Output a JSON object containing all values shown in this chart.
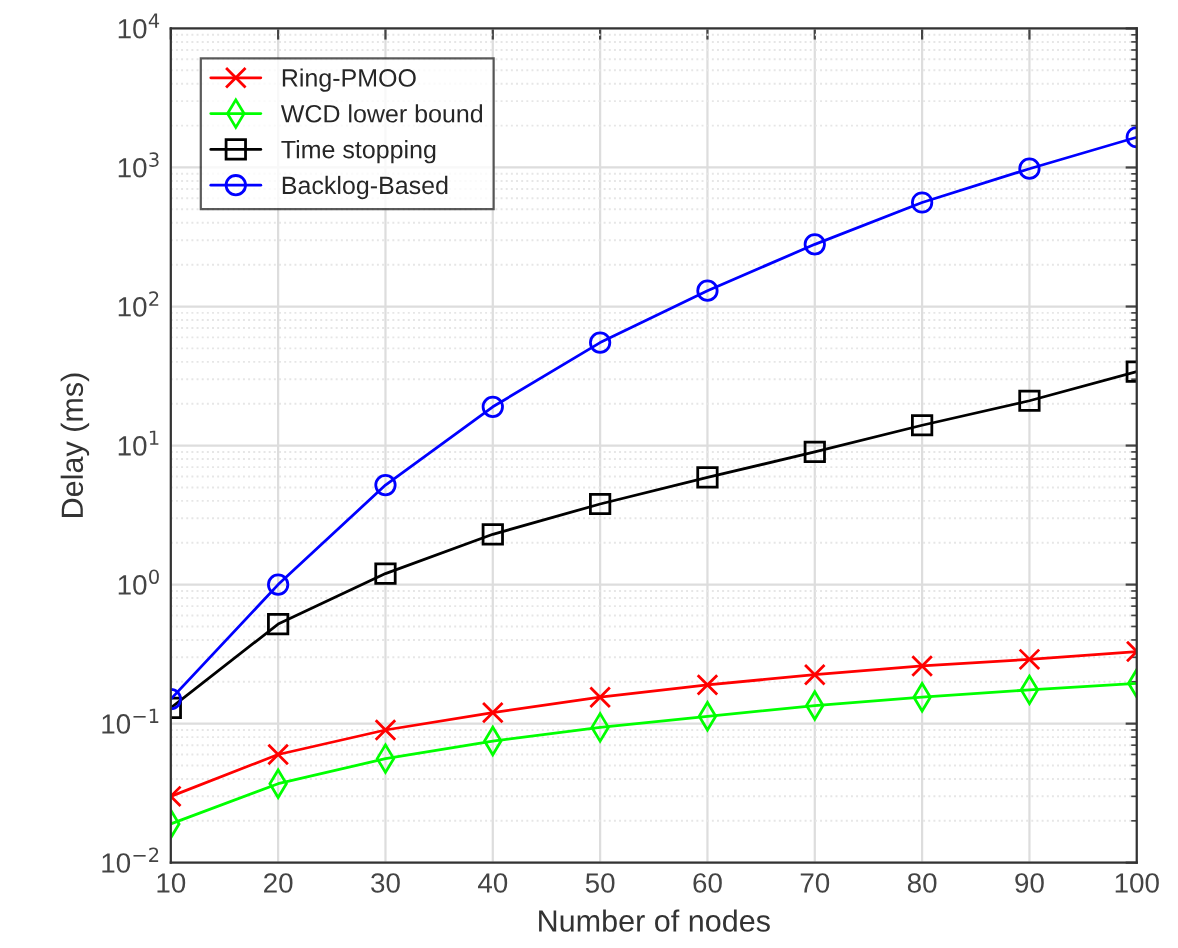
{
  "chart_data": {
    "type": "line",
    "xlabel": "Number of nodes",
    "ylabel": "Delay (ms)",
    "x": [
      10,
      20,
      30,
      40,
      50,
      60,
      70,
      80,
      90,
      100
    ],
    "series": [
      {
        "name": "Ring-PMOO",
        "color": "#ff0000",
        "marker": "cross",
        "values": [
          0.03,
          0.06,
          0.09,
          0.12,
          0.155,
          0.19,
          0.225,
          0.26,
          0.29,
          0.33
        ]
      },
      {
        "name": "WCD lower bound",
        "color": "#00ff00",
        "marker": "diamond",
        "values": [
          0.019,
          0.037,
          0.056,
          0.075,
          0.094,
          0.113,
          0.135,
          0.155,
          0.175,
          0.195
        ]
      },
      {
        "name": "Time stopping",
        "color": "#000000",
        "marker": "square",
        "values": [
          0.13,
          0.52,
          1.2,
          2.3,
          3.8,
          5.9,
          9.0,
          14,
          21,
          34
        ]
      },
      {
        "name": "Backlog-Based",
        "color": "#0000ff",
        "marker": "circle",
        "values": [
          0.15,
          1.0,
          5.2,
          19,
          55,
          130,
          280,
          560,
          980,
          1650
        ]
      }
    ],
    "log": "y",
    "xlim": [
      10,
      100
    ],
    "xticks": [
      10,
      20,
      30,
      40,
      50,
      60,
      70,
      80,
      90,
      100
    ],
    "ylim": [
      0.01,
      10000
    ],
    "yticks": [
      {
        "value": 0.01,
        "label": "10$^{−2}$"
      },
      {
        "value": 0.1,
        "label": "10$^{−1}$"
      },
      {
        "value": 1,
        "label": "10$^{0}$"
      },
      {
        "value": 10,
        "label": "10$^{1}$"
      },
      {
        "value": 100,
        "label": "10$^{2}$"
      },
      {
        "value": 1000,
        "label": "10$^{3}$"
      },
      {
        "value": 10000,
        "label": "10$^{4}$"
      }
    ],
    "grid": true,
    "legend": "top left",
    "line_style": "solid"
  }
}
